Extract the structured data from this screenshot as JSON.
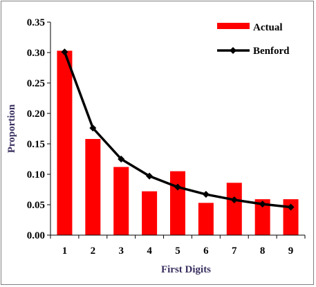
{
  "chart_data": {
    "type": "bar",
    "categories": [
      "1",
      "2",
      "3",
      "4",
      "5",
      "6",
      "7",
      "8",
      "9"
    ],
    "series": [
      {
        "name": "Actual",
        "kind": "bar",
        "color": "#ff0000",
        "values": [
          0.303,
          0.158,
          0.112,
          0.072,
          0.105,
          0.053,
          0.086,
          0.059,
          0.059
        ]
      },
      {
        "name": "Benford",
        "kind": "line-with-diamond-markers",
        "color": "#000000",
        "values": [
          0.301,
          0.176,
          0.125,
          0.097,
          0.079,
          0.067,
          0.058,
          0.051,
          0.046
        ]
      }
    ],
    "xlabel": "First Digits",
    "ylabel": "Proportion",
    "ylim": [
      0,
      0.35
    ],
    "yticks": [
      "0.00",
      "0.05",
      "0.10",
      "0.15",
      "0.20",
      "0.25",
      "0.30",
      "0.35"
    ],
    "grid": false,
    "legend_position": "top-right",
    "axis_title_color": "#3b3060"
  }
}
